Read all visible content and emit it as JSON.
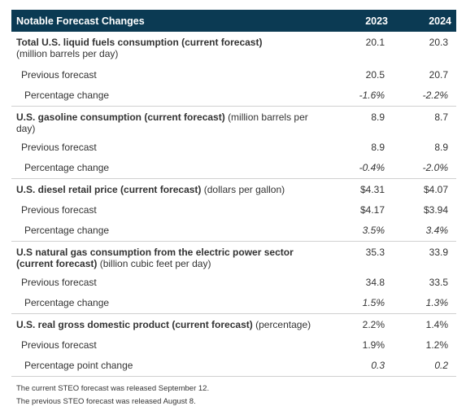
{
  "header": {
    "title": "Notable Forecast Changes",
    "col_2023": "2023",
    "col_2024": "2024"
  },
  "rows": [
    {
      "bold": "Total U.S. liquid fuels consumption (current forecast)",
      "unit": "(million barrels per day)",
      "v2023": "20.1",
      "v2024": "20.3",
      "previous": {
        "label": "Previous forecast",
        "v2023": "20.5",
        "v2024": "20.7"
      },
      "change": {
        "label": "Percentage change",
        "v2023": "-1.6%",
        "v2024": "-2.2%"
      }
    },
    {
      "bold": "U.S. gasoline consumption (current forecast)",
      "unit": "(million barrels per day)",
      "v2023": "8.9",
      "v2024": "8.7",
      "previous": {
        "label": "Previous forecast",
        "v2023": "8.9",
        "v2024": "8.9"
      },
      "change": {
        "label": "Percentage change",
        "v2023": "-0.4%",
        "v2024": "-2.0%"
      }
    },
    {
      "bold": "U.S. diesel retail price (current forecast)",
      "unit": "(dollars per gallon)",
      "v2023": "$4.31",
      "v2024": "$4.07",
      "previous": {
        "label": "Previous forecast",
        "v2023": "$4.17",
        "v2024": "$3.94"
      },
      "change": {
        "label": "Percentage change",
        "v2023": "3.5%",
        "v2024": "3.4%"
      }
    },
    {
      "bold": "U.S natural gas consumption from the electric power sector (current forecast)",
      "unit": "(billion cubic feet per day)",
      "v2023": "35.3",
      "v2024": "33.9",
      "previous": {
        "label": "Previous forecast",
        "v2023": "34.8",
        "v2024": "33.5"
      },
      "change": {
        "label": "Percentage change",
        "v2023": "1.5%",
        "v2024": "1.3%"
      }
    },
    {
      "bold": "U.S. real gross domestic product (current forecast)",
      "unit": "(percentage)",
      "v2023": "2.2%",
      "v2024": "1.4%",
      "previous": {
        "label": "Previous forecast",
        "v2023": "1.9%",
        "v2024": "1.2%"
      },
      "change": {
        "label": "Percentage point change",
        "v2023": "0.3",
        "v2024": "0.2"
      }
    }
  ],
  "notes": {
    "current": "The current STEO forecast was released September 12.",
    "previous": "The previous STEO forecast was released August 8."
  }
}
